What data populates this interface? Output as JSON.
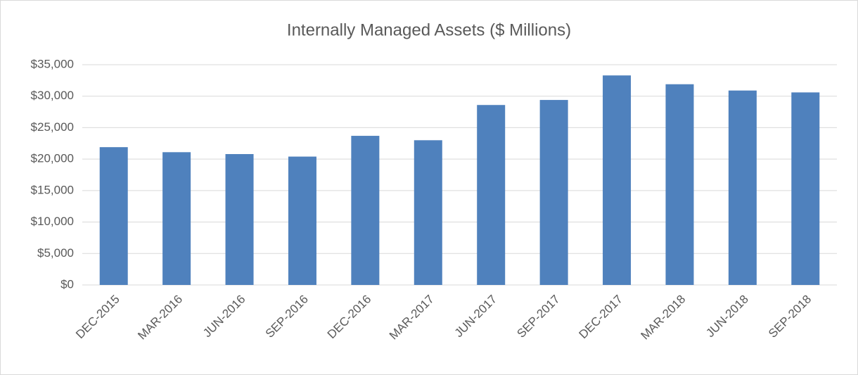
{
  "chart_data": {
    "type": "bar",
    "title": "Internally Managed Assets ($ Millions)",
    "categories": [
      "DEC-2015",
      "MAR-2016",
      "JUN-2016",
      "SEP-2016",
      "DEC-2016",
      "MAR-2017",
      "JUN-2017",
      "SEP-2017",
      "DEC-2017",
      "MAR-2018",
      "JUN-2018",
      "SEP-2018"
    ],
    "values": [
      21900,
      21100,
      20800,
      20400,
      23700,
      23000,
      28600,
      29400,
      33300,
      31900,
      30900,
      30600
    ],
    "color": "#4f81bd",
    "ylim": [
      0,
      35000
    ],
    "yticks": [
      {
        "value": 0,
        "label": "$0"
      },
      {
        "value": 5000,
        "label": "$5,000"
      },
      {
        "value": 10000,
        "label": "$10,000"
      },
      {
        "value": 15000,
        "label": "$15,000"
      },
      {
        "value": 20000,
        "label": "$20,000"
      },
      {
        "value": 25000,
        "label": "$25,000"
      },
      {
        "value": 30000,
        "label": "$30,000"
      },
      {
        "value": 35000,
        "label": "$35,000"
      }
    ],
    "grid": true
  }
}
